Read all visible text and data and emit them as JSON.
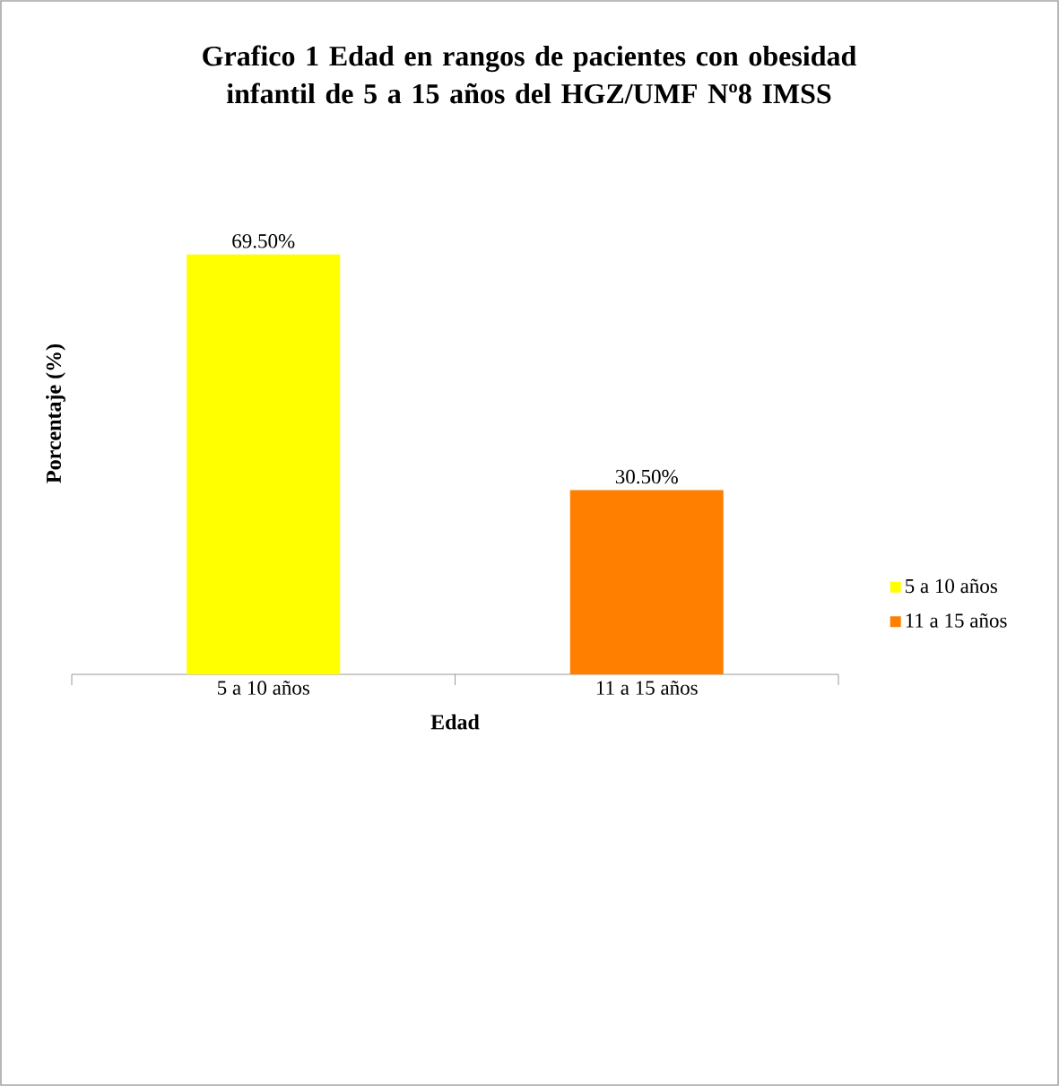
{
  "chart_data": {
    "type": "bar",
    "title": "Grafico 1 Edad en rangos de pacientes con obesidad infantil de 5 a 15 años del HGZ/UMF Nº8 IMSS",
    "xlabel": "Edad",
    "ylabel": "Porcentaje (%)",
    "categories": [
      "5 a 10 años",
      "11 a 15 años"
    ],
    "series": [
      {
        "name": "5 a 10 años",
        "color": "#ffff00",
        "values": [
          69.5,
          null
        ],
        "value_labels": [
          "69.50%",
          null
        ]
      },
      {
        "name": "11 a 15 años",
        "color": "#ff7f00",
        "values": [
          null,
          30.5
        ],
        "value_labels": [
          null,
          "30.50%"
        ]
      }
    ],
    "legend": "right"
  }
}
